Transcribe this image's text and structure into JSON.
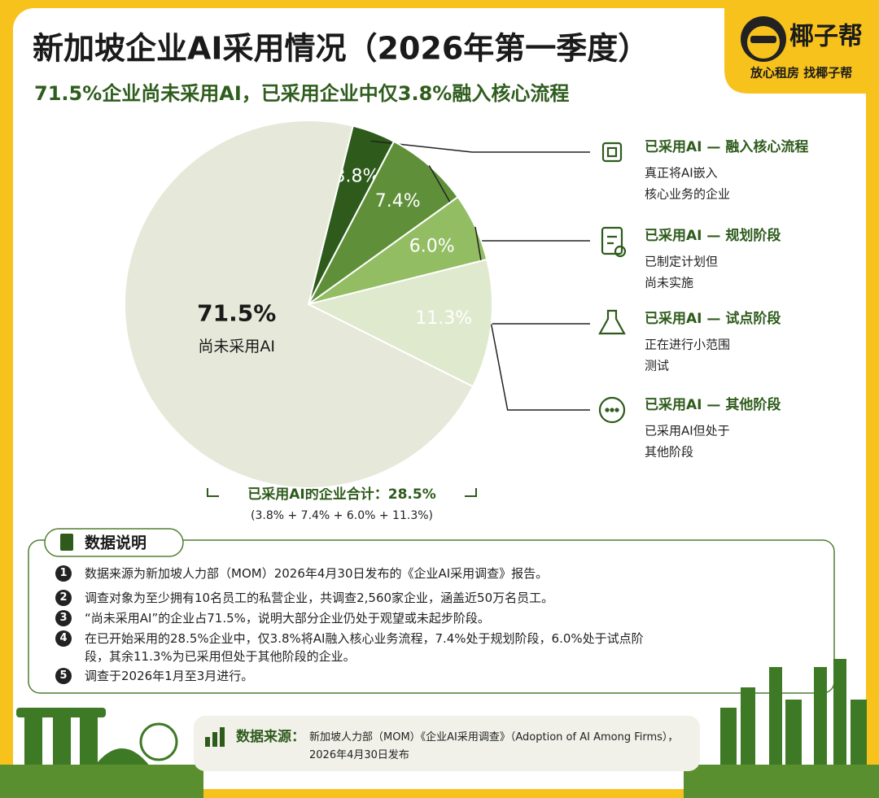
{
  "chart_data": {
    "type": "pie",
    "title": "新加坡企业AI采用情况（2026年第一季度）",
    "subtitle": "71.5%企业尚未采用AI，已采用企业中仅3.8%融入核心流程",
    "categories": [
      "已采用AI — 融入核心流程",
      "已采用AI — 规划阶段",
      "已采用AI — 试点阶段",
      "已采用AI — 其他阶段",
      "尚未采用AI"
    ],
    "values": [
      3.8,
      7.4,
      6.0,
      11.3,
      71.5
    ],
    "value_labels": [
      "3.8%",
      "7.4%",
      "6.0%",
      "11.3%",
      "71.5%"
    ],
    "colors": [
      "#2e5b1c",
      "#5f9039",
      "#93bd63",
      "#dfe9cd",
      "#e6e9d9"
    ],
    "descriptions": [
      [
        "真正将AI嵌入",
        "核心业务的企业"
      ],
      [
        "已制定计划但",
        "尚未实施"
      ],
      [
        "正在进行小范围",
        "测试"
      ],
      [
        "已采用AI但处于",
        "其他阶段"
      ]
    ],
    "summary": [
      "已采用AI的企业合计：28.5%",
      "(3.8% + 7.4% + 6.0% + 11.3%)"
    ]
  },
  "brand": {
    "name": "椰子帮",
    "slogan": "放心租房  找椰子帮"
  },
  "notes": {
    "title": "数据说明",
    "items": [
      {
        "number": "1",
        "text": "数据来源为新加坡人力部（MOM）2026年4月30日发布的《企业AI采用调查》报告。"
      },
      {
        "number": "2",
        "text": "调查对象为至少拥有10名员工的私营企业，共调查2,560家企业，涵盖近50万名员工。"
      },
      {
        "number": "3",
        "text": "“尚未采用AI”的企业占71.5%，说明大部分企业仍处于观望或未起步阶段。"
      },
      {
        "number": "4",
        "text": "在已开始采用的28.5%企业中，仅3.8%将AI融入核心业务流程，7.4%处于规划阶段，6.0%处于试点阶段，其余11.3%为已采用但处于其他阶段的企业。"
      },
      {
        "number": "5",
        "text": "调查于2026年1月至3月进行。"
      }
    ]
  },
  "source": {
    "label": "数据来源：",
    "text": "新加坡人力部（MOM）《企业AI采用调查》（Adoption of AI Among Firms），2026年4月30日发布"
  }
}
